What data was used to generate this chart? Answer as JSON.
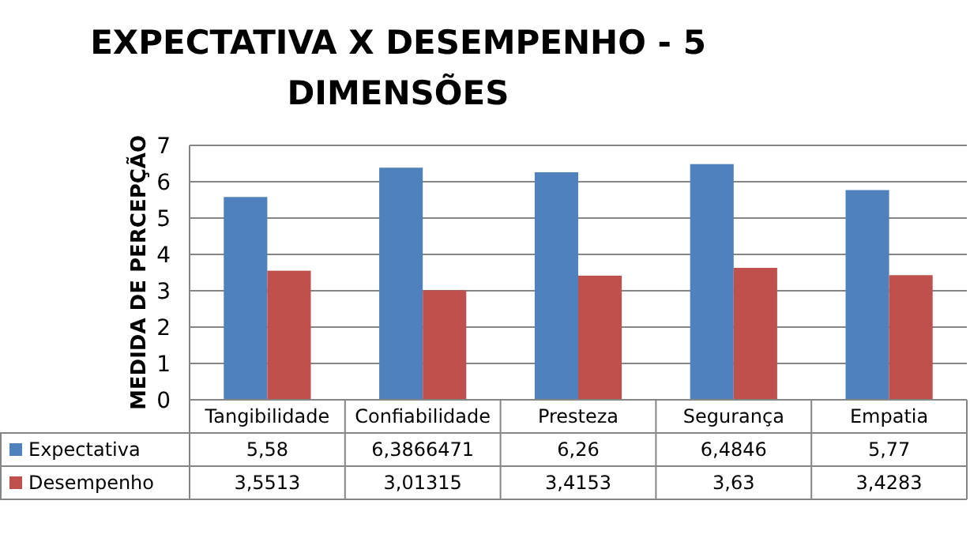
{
  "chart_data": {
    "type": "bar",
    "title": "EXPECTATIVA X DESEMPENHO - 5 DIMENSÕES",
    "ylabel": "MEDIDA DE PERCEPÇÃO",
    "categories": [
      "Tangibilidade",
      "Confiabilidade",
      "Presteza",
      "Segurança",
      "Empatia"
    ],
    "series": [
      {
        "name": "Expectativa",
        "color": "#4f81bd",
        "values": [
          5.58,
          6.3866471,
          6.26,
          6.4846,
          5.77
        ],
        "value_labels": [
          "5,58",
          "6,3866471",
          "6,26",
          "6,4846",
          "5,77"
        ]
      },
      {
        "name": "Desempenho",
        "color": "#c0504d",
        "values": [
          3.5513,
          3.01315,
          3.4153,
          3.63,
          3.4283
        ],
        "value_labels": [
          "3,5513",
          "3,01315",
          "3,4153",
          "3,63",
          "3,4283"
        ]
      }
    ],
    "ylim": [
      0,
      7
    ],
    "yticks": [
      0,
      1,
      2,
      3,
      4,
      5,
      6,
      7
    ],
    "grid": "y",
    "legend": "bottom"
  }
}
